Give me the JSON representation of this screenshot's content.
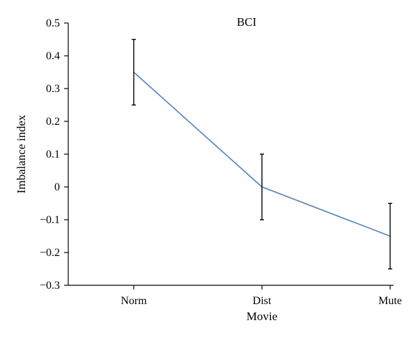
{
  "chart_data": {
    "type": "line",
    "title": "BCI",
    "xlabel": "Movie",
    "ylabel": "Imbalance index",
    "categories": [
      "Norm",
      "Dist",
      "Mute"
    ],
    "series": [
      {
        "values": [
          0.35,
          0.0,
          -0.15
        ],
        "error_low": [
          0.25,
          -0.1,
          -0.25
        ],
        "error_high": [
          0.45,
          0.1,
          -0.05
        ],
        "color": "#4f81bd"
      }
    ],
    "ylim": [
      -0.3,
      0.5
    ],
    "yticks": [
      0.5,
      0.4,
      0.3,
      0.2,
      0.1,
      0,
      -0.1,
      -0.2,
      -0.3
    ],
    "ytick_labels": [
      "0.5",
      "0.4",
      "0.3",
      "0.2",
      "0.1",
      "0",
      "−0.1",
      "−0.2",
      "−0.3"
    ],
    "grid": false,
    "legend": "none"
  }
}
